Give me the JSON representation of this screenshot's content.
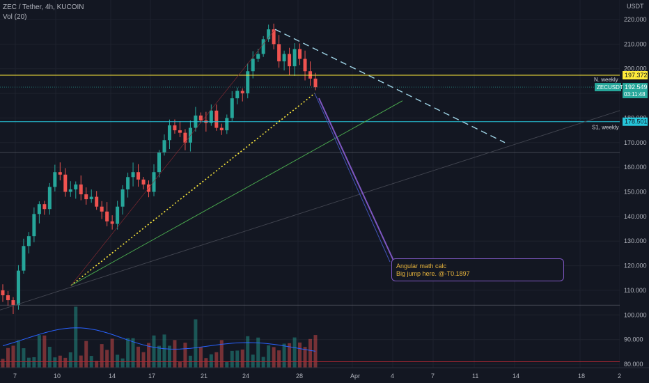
{
  "legend": {
    "symbol": "ZEC / Tether, 4h, KUCOIN",
    "volume": "Vol (20)"
  },
  "currency": "USDT",
  "note": {
    "line1": "Angular math calc",
    "line2": "Big jump here.  @-T0.1897"
  },
  "price_tags": {
    "weekly_label": "N. weekly",
    "weekly_value": "197.372",
    "symbol_label": "ZECUSDT",
    "symbol_value": "192.549",
    "countdown": "03:11:48",
    "s1_label": "S1, weekly",
    "s1_value": "178.501"
  },
  "colors": {
    "background": "#131722",
    "up": "#26a69a",
    "down": "#ef5350",
    "weekly_line": "#ffeb3b",
    "s1_line": "#26c6da",
    "projection": "#7e57c2",
    "volume_ma": "#2962ff"
  },
  "chart_data": {
    "type": "candlestick",
    "title": "ZEC / Tether, 4h, KUCOIN",
    "y_range": [
      78,
      224
    ],
    "y_ticks": [
      80,
      90,
      100,
      110,
      120,
      130,
      140,
      150,
      160,
      170,
      180,
      190,
      200,
      210,
      220
    ],
    "y_tick_labels": [
      "80.000",
      "90.000",
      "100.000",
      "110.000",
      "120.000",
      "130.000",
      "140.000",
      "150.000",
      "160.000",
      "170.000",
      "180.000",
      "190.000",
      "200.000",
      "210.000",
      "220.000"
    ],
    "x_ticks": [
      "7",
      "10",
      "14",
      "17",
      "21",
      "24",
      "28",
      "Apr",
      "4",
      "7",
      "11",
      "14",
      "18",
      "2"
    ],
    "levels": [
      {
        "name": "N. weekly",
        "value": 197.372
      },
      {
        "name": "S1, weekly",
        "value": 178.501
      }
    ],
    "last_price": 192.549,
    "closes_sample": [
      108,
      106,
      104,
      118,
      128,
      132,
      141,
      145,
      143,
      152,
      158,
      157,
      150,
      151,
      153,
      149,
      147,
      148,
      144,
      142,
      138,
      137,
      144,
      151,
      156,
      158,
      155,
      153,
      150,
      158,
      166,
      171,
      177,
      175,
      174,
      170,
      176,
      181,
      179,
      178,
      183,
      176,
      175,
      180,
      188,
      191,
      190,
      199,
      204,
      206,
      212,
      216,
      210,
      203,
      206,
      201,
      208,
      204,
      199,
      196,
      192.5
    ],
    "volume_note": "volume histogram with 20-period moving average"
  }
}
